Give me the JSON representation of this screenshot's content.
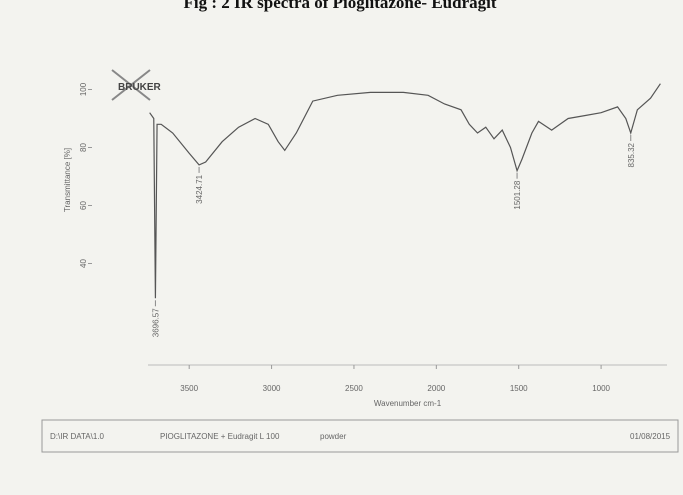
{
  "chart_data": {
    "type": "line",
    "title": "Fig : 2 IR spectra of Pioglitazone- Eudragit",
    "logo": "BRUKER",
    "x_label": "Wavenumber cm-1",
    "y_label": "Transmittance [%]",
    "xlim": [
      3750,
      600
    ],
    "xticks": [
      3500,
      3000,
      2500,
      2000,
      1500,
      1000
    ],
    "ylim": [
      5,
      105
    ],
    "yticks": [
      40,
      60,
      80,
      100
    ],
    "x": [
      3740,
      3715,
      3705,
      3695,
      3670,
      3600,
      3500,
      3440,
      3400,
      3300,
      3200,
      3100,
      3020,
      2960,
      2920,
      2850,
      2750,
      2600,
      2400,
      2200,
      2050,
      1950,
      1850,
      1800,
      1750,
      1700,
      1650,
      1600,
      1550,
      1510,
      1480,
      1420,
      1380,
      1300,
      1200,
      1100,
      1000,
      900,
      850,
      820,
      780,
      700,
      640
    ],
    "series": [
      {
        "color": "#555555",
        "values": [
          92,
          90,
          28,
          88,
          88,
          85,
          78,
          74,
          75,
          82,
          87,
          90,
          88,
          82,
          79,
          85,
          96,
          98,
          99,
          99,
          98,
          95,
          93,
          88,
          85,
          87,
          83,
          86,
          80,
          72,
          76,
          85,
          89,
          86,
          90,
          91,
          92,
          94,
          90,
          85,
          93,
          97,
          102
        ]
      }
    ],
    "annotations": [
      {
        "text": "3696.57",
        "x": 3705
      },
      {
        "text": "3424.71",
        "x": 3440
      },
      {
        "text": "1501.28",
        "x": 1510
      },
      {
        "text": "835.32",
        "x": 820
      }
    ]
  },
  "footer": {
    "cells": [
      "D:\\IR DATA\\1.0",
      "PIOGLITAZONE + Eudragit L 100",
      "powder",
      "01/08/2015"
    ]
  }
}
